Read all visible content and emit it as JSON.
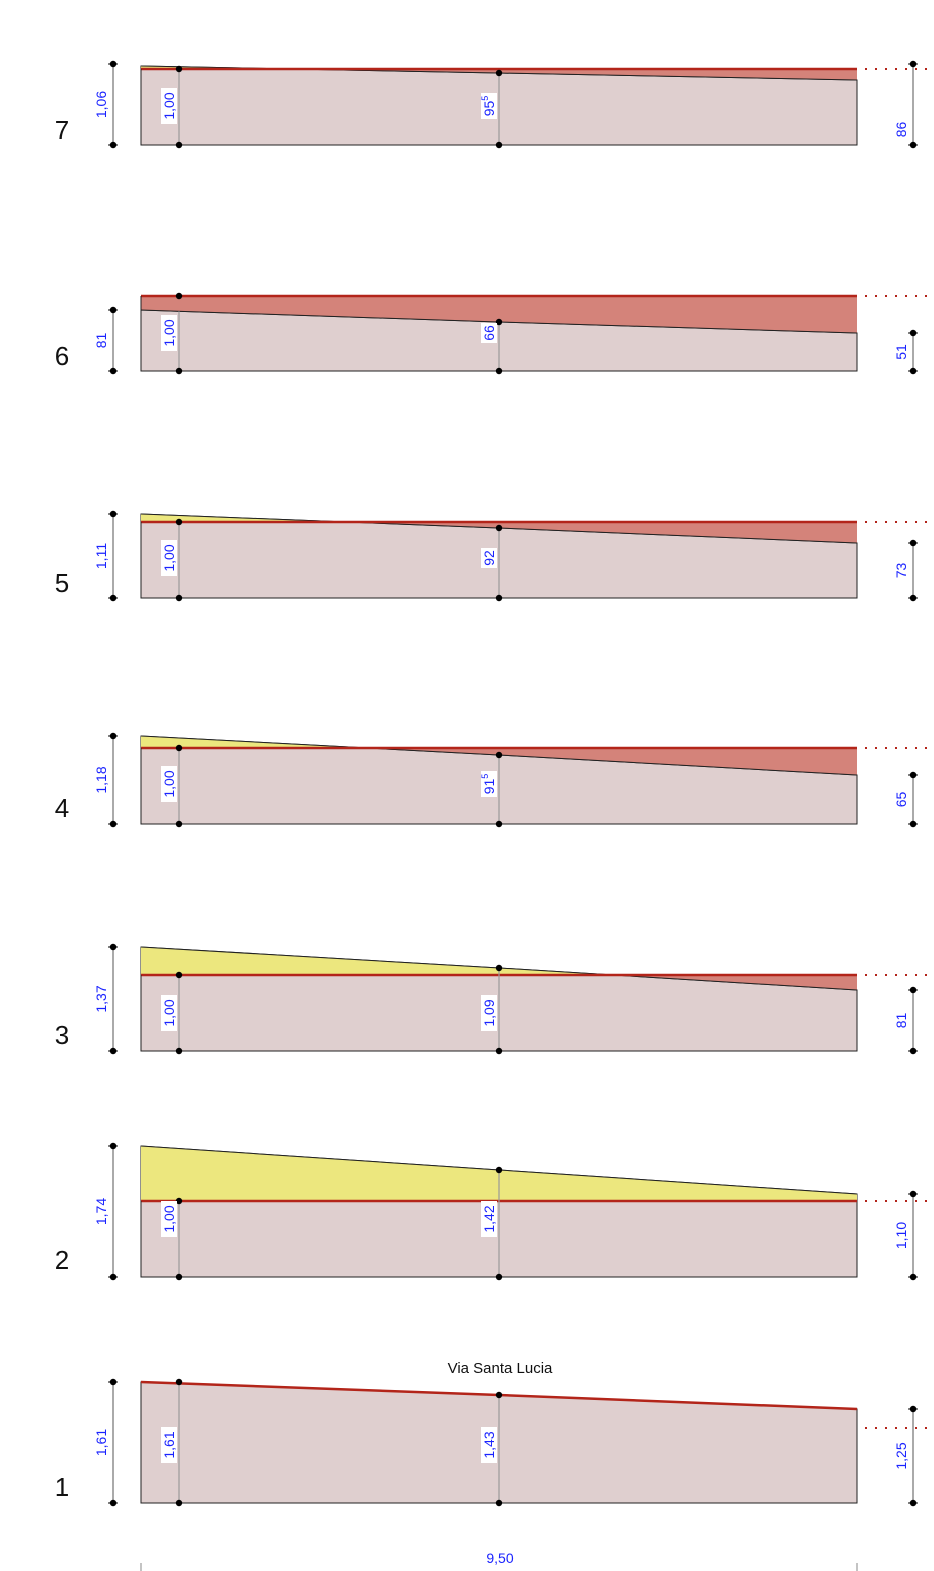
{
  "colors": {
    "base_fill": "#dfcfcf",
    "fill_yellow": "#ece77e",
    "fill_red": "#d4837a",
    "ref_line": "#b3251a",
    "outline": "#222222",
    "dim_text": "#1a23ff",
    "dot": "#000000"
  },
  "sections": [
    {
      "id": 7,
      "label": "7",
      "left": "1,06",
      "left_sup": "",
      "inner": "1,00",
      "inner_sup": "",
      "mid": "95",
      "mid_sup": "5",
      "right": "86",
      "right_sup": ""
    },
    {
      "id": 6,
      "label": "6",
      "left": "81",
      "left_sup": "",
      "inner": "1,00",
      "inner_sup": "",
      "mid": "66",
      "mid_sup": "",
      "right": "51",
      "right_sup": ""
    },
    {
      "id": 5,
      "label": "5",
      "left": "1,11",
      "left_sup": "",
      "inner": "1,00",
      "inner_sup": "",
      "mid": "92",
      "mid_sup": "",
      "right": "73",
      "right_sup": ""
    },
    {
      "id": 4,
      "label": "4",
      "left": "1,18",
      "left_sup": "",
      "inner": "1,00",
      "inner_sup": "",
      "mid": "91",
      "mid_sup": "5",
      "right": "65",
      "right_sup": ""
    },
    {
      "id": 3,
      "label": "3",
      "left": "1,37",
      "left_sup": "",
      "inner": "1,00",
      "inner_sup": "",
      "mid": "1,09",
      "mid_sup": "",
      "right": "81",
      "right_sup": ""
    },
    {
      "id": 2,
      "label": "2",
      "left": "1,74",
      "left_sup": "",
      "inner": "1,00",
      "inner_sup": "",
      "mid": "1,42",
      "mid_sup": "",
      "right": "1,10",
      "right_sup": ""
    },
    {
      "id": 1,
      "label": "1",
      "left": "1,61",
      "left_sup": "",
      "inner": "1,61",
      "inner_sup": "",
      "mid": "1,43",
      "mid_sup": "",
      "right": "1,25",
      "right_sup": ""
    }
  ],
  "street_label": "Via Santa Lucia",
  "total_length": "9,50"
}
